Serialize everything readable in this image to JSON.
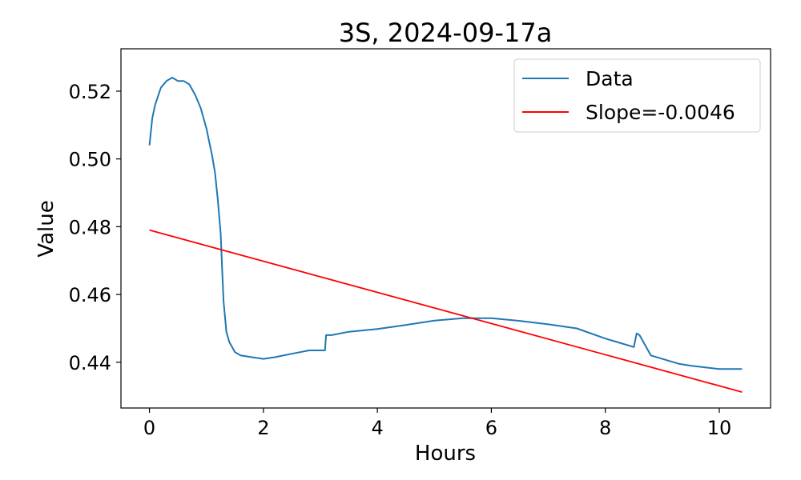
{
  "chart_data": {
    "type": "line",
    "title": "3S, 2024-09-17a",
    "xlabel": "Hours",
    "ylabel": "Value",
    "xlim": [
      -0.5,
      10.9
    ],
    "ylim": [
      0.4265,
      0.5325
    ],
    "xticks": [
      0,
      2,
      4,
      6,
      8,
      10
    ],
    "xtick_labels": [
      "0",
      "2",
      "4",
      "6",
      "8",
      "10"
    ],
    "yticks": [
      0.44,
      0.46,
      0.48,
      0.5,
      0.52
    ],
    "ytick_labels": [
      "0.44",
      "0.46",
      "0.48",
      "0.50",
      "0.52"
    ],
    "grid": false,
    "legend": {
      "placement": "top-right",
      "entries": [
        "Data",
        "Slope=-0.0046"
      ]
    },
    "series": [
      {
        "name": "Data",
        "color": "#1f77b4",
        "x": [
          0.0,
          0.05,
          0.1,
          0.2,
          0.3,
          0.4,
          0.5,
          0.6,
          0.7,
          0.8,
          0.9,
          1.0,
          1.1,
          1.15,
          1.2,
          1.25,
          1.28,
          1.3,
          1.35,
          1.4,
          1.5,
          1.6,
          1.8,
          2.0,
          2.2,
          2.5,
          2.8,
          3.0,
          3.08,
          3.1,
          3.2,
          3.5,
          4.0,
          4.5,
          5.0,
          5.5,
          6.0,
          6.5,
          7.0,
          7.5,
          8.0,
          8.3,
          8.5,
          8.55,
          8.6,
          8.7,
          8.8,
          9.0,
          9.3,
          9.5,
          10.0,
          10.4
        ],
        "y": [
          0.504,
          0.512,
          0.516,
          0.521,
          0.523,
          0.524,
          0.523,
          0.523,
          0.522,
          0.519,
          0.515,
          0.509,
          0.501,
          0.496,
          0.488,
          0.478,
          0.466,
          0.458,
          0.449,
          0.446,
          0.443,
          0.442,
          0.4415,
          0.441,
          0.4415,
          0.4425,
          0.4435,
          0.4435,
          0.4435,
          0.448,
          0.448,
          0.449,
          0.4498,
          0.451,
          0.4523,
          0.453,
          0.453,
          0.4522,
          0.4512,
          0.45,
          0.447,
          0.4455,
          0.4445,
          0.4485,
          0.448,
          0.445,
          0.442,
          0.441,
          0.4395,
          0.439,
          0.438,
          0.438
        ]
      },
      {
        "name": "Slope=-0.0046",
        "color": "#ff0000",
        "x": [
          0.0,
          10.4
        ],
        "y": [
          0.479,
          0.4312
        ]
      }
    ]
  }
}
